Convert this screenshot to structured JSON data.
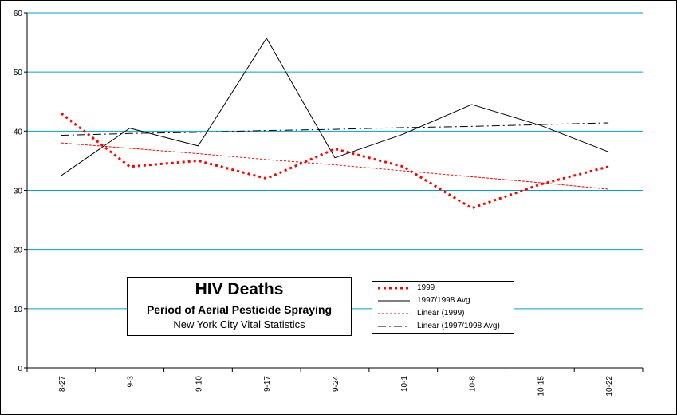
{
  "chart_data": {
    "type": "line",
    "categories": [
      "8-27",
      "9-3",
      "9-10",
      "9-17",
      "9-24",
      "10-1",
      "10-8",
      "10-15",
      "10-22"
    ],
    "series": [
      {
        "name": "1999",
        "values": [
          43,
          34,
          35,
          32,
          37,
          34,
          27,
          31,
          34
        ],
        "color": "#ff0000",
        "style": "dotted-thick"
      },
      {
        "name": "1997/1998 Avg",
        "values": [
          32.5,
          40.5,
          37.5,
          55.7,
          35.5,
          39.5,
          44.5,
          41,
          36.5
        ],
        "color": "#000000",
        "style": "solid"
      },
      {
        "name": "Linear (1999)",
        "values": [
          38,
          37.1,
          36.2,
          35.2,
          34.3,
          33.3,
          32.3,
          31.3,
          30.2
        ],
        "color": "#ff0000",
        "style": "dashed-thin"
      },
      {
        "name": "Linear (1997/1998 Avg)",
        "values": [
          39.3,
          39.6,
          39.8,
          40.1,
          40.3,
          40.6,
          40.8,
          41.1,
          41.4
        ],
        "color": "#000000",
        "style": "dash-dot"
      }
    ],
    "ylim": [
      0,
      60
    ],
    "yticks": [
      0,
      10,
      20,
      30,
      40,
      50,
      60
    ],
    "gridlines": "horizontal",
    "grid_color": "#00a0c8",
    "legend_position": "bottom-center",
    "xlabel": "",
    "ylabel": ""
  },
  "title_box": {
    "title": "HIV Deaths",
    "subtitle": "Period of Aerial Pesticide Spraying",
    "source": "New York City Vital Statistics"
  }
}
